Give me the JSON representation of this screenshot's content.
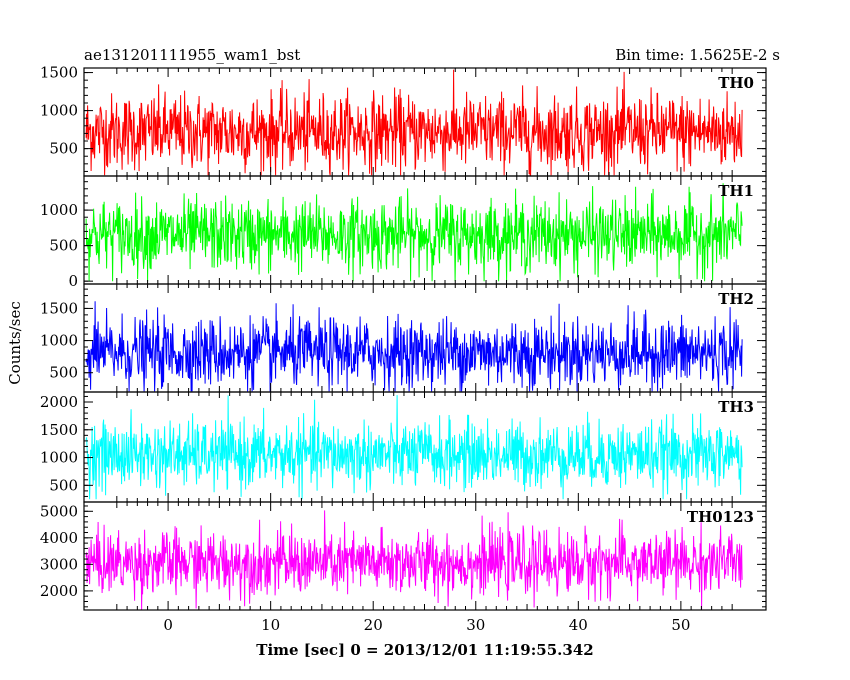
{
  "chart_data": {
    "type": "line",
    "title": "ae131201111955_wam1_bst",
    "subtitle": "Bin time: 1.5625E-2 s",
    "xlabel": "Time [sec] 0 = 2013/12/01 11:19:55.342",
    "ylabel": "Counts/sec",
    "xlim": [
      -8.2,
      58.3
    ],
    "data_x_range": [
      -8,
      56
    ],
    "x_ticks": [
      0,
      10,
      20,
      30,
      40,
      50
    ],
    "grid": false,
    "series": [
      {
        "name": "TH0",
        "color": "#ff0000",
        "ylim": [
          140,
          1560
        ],
        "y_ticks": [
          500,
          1000,
          1500
        ],
        "envelope": {
          "min": 150,
          "max": 1540
        },
        "mean": 720,
        "noise_sd": 250
      },
      {
        "name": "TH1",
        "color": "#00ff00",
        "ylim": [
          -40,
          1480
        ],
        "y_ticks": [
          0,
          500,
          1000
        ],
        "envelope": {
          "min": 0,
          "max": 1450
        },
        "mean": 650,
        "noise_sd": 250
      },
      {
        "name": "TH2",
        "color": "#0000ff",
        "ylim": [
          200,
          1880
        ],
        "y_ticks": [
          500,
          1000,
          1500
        ],
        "envelope": {
          "min": 210,
          "max": 1860
        },
        "mean": 810,
        "noise_sd": 270
      },
      {
        "name": "TH3",
        "color": "#00ffff",
        "ylim": [
          200,
          2180
        ],
        "y_ticks": [
          500,
          1000,
          1500,
          2000
        ],
        "envelope": {
          "min": 250,
          "max": 2140
        },
        "mean": 1050,
        "noise_sd": 300
      },
      {
        "name": "TH0123",
        "color": "#ff00ff",
        "ylim": [
          1280,
          5350
        ],
        "y_ticks": [
          2000,
          3000,
          4000,
          5000
        ],
        "envelope": {
          "min": 1280,
          "max": 5200
        },
        "mean": 3050,
        "noise_sd": 600
      }
    ]
  }
}
